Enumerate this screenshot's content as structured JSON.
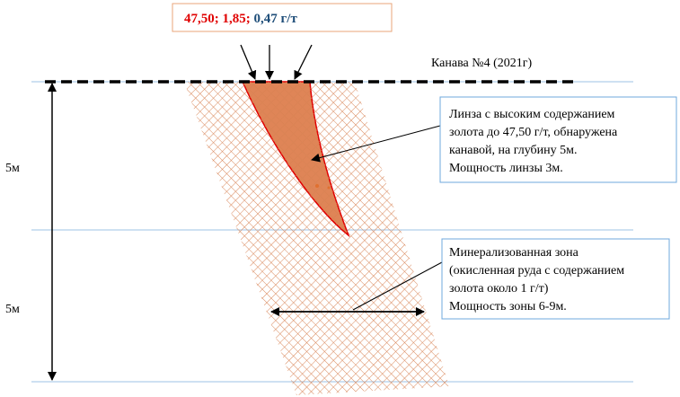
{
  "header": {
    "values_parts": [
      "47,50;",
      "1,85;",
      "0,47 г/т"
    ]
  },
  "trench_label": "Канава №4 (2021г)",
  "depth_labels": [
    "5м",
    "5м"
  ],
  "callouts": [
    {
      "lines": [
        "Линза с высоким содержанием",
        "золота до 47,50 г/т, обнаружена",
        "канавой, на глубину 5м.",
        "Мощность линзы 3м."
      ]
    },
    {
      "lines": [
        "Минерализованная зона",
        "(окисленная руда с содержанием",
        "золота около 1 г/т)",
        "Мощность зоны 6-9м."
      ]
    }
  ]
}
